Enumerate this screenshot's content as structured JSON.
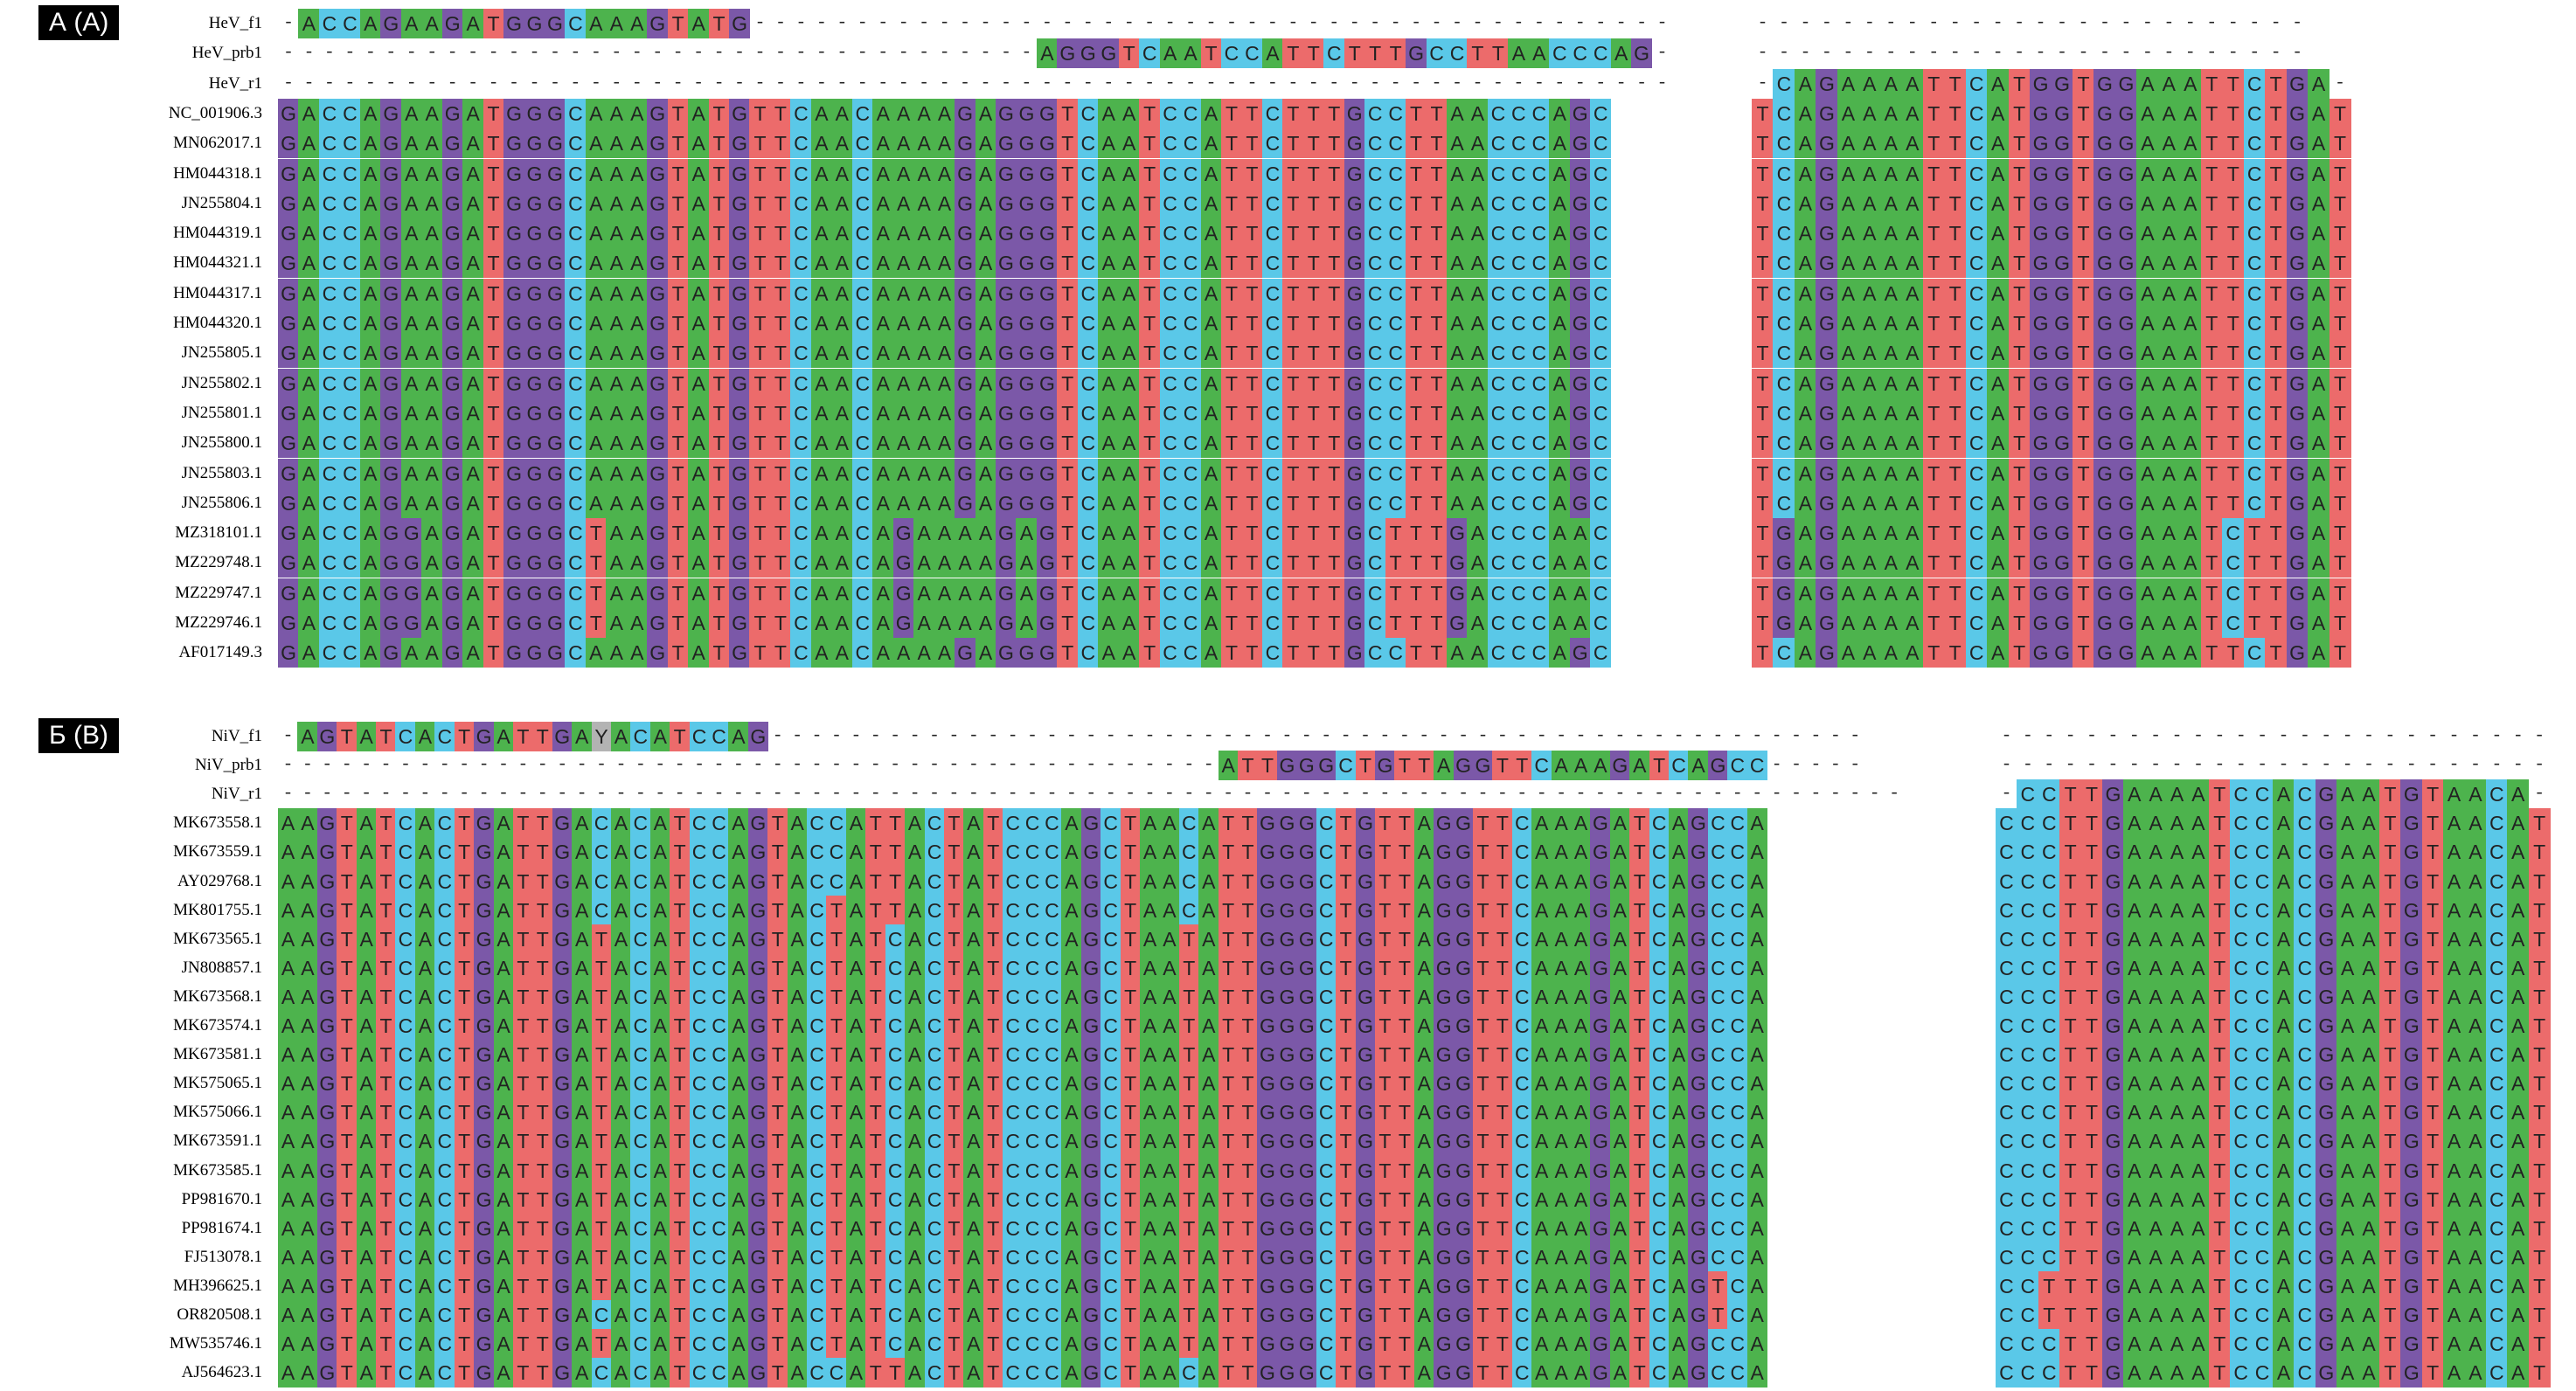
{
  "colors": {
    "A": "#4db34d",
    "C": "#5ac8e8",
    "G": "#7b58a8",
    "T": "#ec6b6b",
    "Y": "#b3b3b3",
    "gap": "#ffffff"
  },
  "panels": [
    {
      "tag": "А (A)",
      "blocks": [
        {
          "rows": [
            {
              "label": "HeV_f1",
              "seq": "-ACCAGAAGATGGGCAAAGTATG---------------------------------------------"
            },
            {
              "label": "HeV_prb1",
              "seq": "-------------------------------------AGGGTCAATCCATTCTTTGCCTTAACCCAG-"
            },
            {
              "label": "HeV_r1",
              "seq": "--------------------------------------------------------------------"
            },
            {
              "label": "NC_001906.3",
              "seq": "GACCAGAAGATGGGCAAAGTATGTTCAACAAAAGAGGGTCAATCCATTCTTTGCCTTAACCCAGC"
            },
            {
              "label": "MN062017.1",
              "seq": "GACCAGAAGATGGGCAAAGTATGTTCAACAAAAGAGGGTCAATCCATTCTTTGCCTTAACCCAGC"
            },
            {
              "label": "HM044318.1",
              "seq": "GACCAGAAGATGGGCAAAGTATGTTCAACAAAAGAGGGTCAATCCATTCTTTGCCTTAACCCAGC"
            },
            {
              "label": "JN255804.1",
              "seq": "GACCAGAAGATGGGCAAAGTATGTTCAACAAAAGAGGGTCAATCCATTCTTTGCCTTAACCCAGC"
            },
            {
              "label": "HM044319.1",
              "seq": "GACCAGAAGATGGGCAAAGTATGTTCAACAAAAGAGGGTCAATCCATTCTTTGCCTTAACCCAGC"
            },
            {
              "label": "HM044321.1",
              "seq": "GACCAGAAGATGGGCAAAGTATGTTCAACAAAAGAGGGTCAATCCATTCTTTGCCTTAACCCAGC"
            },
            {
              "label": "HM044317.1",
              "seq": "GACCAGAAGATGGGCAAAGTATGTTCAACAAAAGAGGGTCAATCCATTCTTTGCCTTAACCCAGC"
            },
            {
              "label": "HM044320.1",
              "seq": "GACCAGAAGATGGGCAAAGTATGTTCAACAAAAGAGGGTCAATCCATTCTTTGCCTTAACCCAGC"
            },
            {
              "label": "JN255805.1",
              "seq": "GACCAGAAGATGGGCAAAGTATGTTCAACAAAAGAGGGTCAATCCATTCTTTGCCTTAACCCAGC"
            },
            {
              "label": "JN255802.1",
              "seq": "GACCAGAAGATGGGCAAAGTATGTTCAACAAAAGAGGGTCAATCCATTCTTTGCCTTAACCCAGC"
            },
            {
              "label": "JN255801.1",
              "seq": "GACCAGAAGATGGGCAAAGTATGTTCAACAAAAGAGGGTCAATCCATTCTTTGCCTTAACCCAGC"
            },
            {
              "label": "JN255800.1",
              "seq": "GACCAGAAGATGGGCAAAGTATGTTCAACAAAAGAGGGTCAATCCATTCTTTGCCTTAACCCAGC"
            },
            {
              "label": "JN255803.1",
              "seq": "GACCAGAAGATGGGCAAAGTATGTTCAACAAAAGAGGGTCAATCCATTCTTTGCCTTAACCCAGC"
            },
            {
              "label": "JN255806.1",
              "seq": "GACCAGAAGATGGGCAAAGTATGTTCAACAAAAGAGGGTCAATCCATTCTTTGCCTTAACCCAGC"
            },
            {
              "label": "MZ318101.1",
              "seq": "GACCAGGAGATGGGCTAAGTATGTTCAACAGAAAAGAGTCAATCCATTCTTTGCTTTGACCCAAC"
            },
            {
              "label": "MZ229748.1",
              "seq": "GACCAGGAGATGGGCTAAGTATGTTCAACAGAAAAGAGTCAATCCATTCTTTGCTTTGACCCAAC"
            },
            {
              "label": "MZ229747.1",
              "seq": "GACCAGGAGATGGGCTAAGTATGTTCAACAGAAAAGAGTCAATCCATTCTTTGCTTTGACCCAAC"
            },
            {
              "label": "MZ229746.1",
              "seq": "GACCAGGAGATGGGCTAAGTATGTTCAACAGAAAAGAGTCAATCCATTCTTTGCTTTGACCCAAC"
            },
            {
              "label": "AF017149.3",
              "seq": "GACCAGAAGATGGGCAAAGTATGTTCAACAAAAGAGGGTCAATCCATTCTTTGCCTTAACCCAGC"
            }
          ]
        },
        {
          "rows": [
            {
              "label": "",
              "seq": "--------------------------"
            },
            {
              "label": "",
              "seq": "--------------------------"
            },
            {
              "label": "",
              "seq": "-CAGAAAATTCATGGTGGAAATTCTGA-"
            },
            {
              "label": "",
              "seq": "TCAGAAAATTCATGGTGGAAATTCTGAT"
            },
            {
              "label": "",
              "seq": "TCAGAAAATTCATGGTGGAAATTCTGAT"
            },
            {
              "label": "",
              "seq": "TCAGAAAATTCATGGTGGAAATTCTGAT"
            },
            {
              "label": "",
              "seq": "TCAGAAAATTCATGGTGGAAATTCTGAT"
            },
            {
              "label": "",
              "seq": "TCAGAAAATTCATGGTGGAAATTCTGAT"
            },
            {
              "label": "",
              "seq": "TCAGAAAATTCATGGTGGAAATTCTGAT"
            },
            {
              "label": "",
              "seq": "TCAGAAAATTCATGGTGGAAATTCTGAT"
            },
            {
              "label": "",
              "seq": "TCAGAAAATTCATGGTGGAAATTCTGAT"
            },
            {
              "label": "",
              "seq": "TCAGAAAATTCATGGTGGAAATTCTGAT"
            },
            {
              "label": "",
              "seq": "TCAGAAAATTCATGGTGGAAATTCTGAT"
            },
            {
              "label": "",
              "seq": "TCAGAAAATTCATGGTGGAAATTCTGAT"
            },
            {
              "label": "",
              "seq": "TCAGAAAATTCATGGTGGAAATTCTGAT"
            },
            {
              "label": "",
              "seq": "TCAGAAAATTCATGGTGGAAATTCTGAT"
            },
            {
              "label": "",
              "seq": "TCAGAAAATTCATGGTGGAAATTCTGAT"
            },
            {
              "label": "",
              "seq": "TGAGAAAATTCATGGTGGAAATCTTGAT"
            },
            {
              "label": "",
              "seq": "TGAGAAAATTCATGGTGGAAATCTTGAT"
            },
            {
              "label": "",
              "seq": "TGAGAAAATTCATGGTGGAAATCTTGAT"
            },
            {
              "label": "",
              "seq": "TGAGAAAATTCATGGTGGAAATCTTGAT"
            },
            {
              "label": "",
              "seq": "TCAGAAAATTCATGGTGGAAATTCTGAT"
            }
          ]
        }
      ]
    },
    {
      "tag": "Б (B)",
      "blocks": [
        {
          "rows": [
            {
              "label": "NiV_f1",
              "seq": "-AGTATCACTGATTGAYACATCCAG--------------------------------------------------------"
            },
            {
              "label": "NiV_prb1",
              "seq": "------------------------------------------------ATTGGGCTGTTAGGTTCAAAGATCAGCC-----"
            },
            {
              "label": "NiV_r1",
              "seq": "-----------------------------------------------------------------------------------"
            },
            {
              "label": "MK673558.1",
              "seq": "AAGTATCACTGATTGACACATCCAGTACCATTACTATCCCAGCTAACATTGGGCTGTTAGGTTCAAAGATCAGCCA"
            },
            {
              "label": "MK673559.1",
              "seq": "AAGTATCACTGATTGACACATCCAGTACCATTACTATCCCAGCTAACATTGGGCTGTTAGGTTCAAAGATCAGCCA"
            },
            {
              "label": "AY029768.1",
              "seq": "AAGTATCACTGATTGACACATCCAGTACCATTACTATCCCAGCTAACATTGGGCTGTTAGGTTCAAAGATCAGCCA"
            },
            {
              "label": "MK801755.1",
              "seq": "AAGTATCACTGATTGACACATCCAGTACTATTACTATCCCAGCTAACATTGGGCTGTTAGGTTCAAAGATCAGCCA"
            },
            {
              "label": "MK673565.1",
              "seq": "AAGTATCACTGATTGATACATCCAGTACTATCACTATCCCAGCTAATATTGGGCTGTTAGGTTCAAAGATCAGCCA"
            },
            {
              "label": "JN808857.1",
              "seq": "AAGTATCACTGATTGATACATCCAGTACTATCACTATCCCAGCTAATATTGGGCTGTTAGGTTCAAAGATCAGCCA"
            },
            {
              "label": "MK673568.1",
              "seq": "AAGTATCACTGATTGATACATCCAGTACTATCACTATCCCAGCTAATATTGGGCTGTTAGGTTCAAAGATCAGCCA"
            },
            {
              "label": "MK673574.1",
              "seq": "AAGTATCACTGATTGATACATCCAGTACTATCACTATCCCAGCTAATATTGGGCTGTTAGGTTCAAAGATCAGCCA"
            },
            {
              "label": "MK673581.1",
              "seq": "AAGTATCACTGATTGATACATCCAGTACTATCACTATCCCAGCTAATATTGGGCTGTTAGGTTCAAAGATCAGCCA"
            },
            {
              "label": "MK575065.1",
              "seq": "AAGTATCACTGATTGATACATCCAGTACTATCACTATCCCAGCTAATATTGGGCTGTTAGGTTCAAAGATCAGCCA"
            },
            {
              "label": "MK575066.1",
              "seq": "AAGTATCACTGATTGATACATCCAGTACTATCACTATCCCAGCTAATATTGGGCTGTTAGGTTCAAAGATCAGCCA"
            },
            {
              "label": "MK673591.1",
              "seq": "AAGTATCACTGATTGATACATCCAGTACTATCACTATCCCAGCTAATATTGGGCTGTTAGGTTCAAAGATCAGCCA"
            },
            {
              "label": "MK673585.1",
              "seq": "AAGTATCACTGATTGATACATCCAGTACTATCACTATCCCAGCTAATATTGGGCTGTTAGGTTCAAAGATCAGCCA"
            },
            {
              "label": "PP981670.1",
              "seq": "AAGTATCACTGATTGATACATCCAGTACTATCACTATCCCAGCTAATATTGGGCTGTTAGGTTCAAAGATCAGCCA"
            },
            {
              "label": "PP981674.1",
              "seq": "AAGTATCACTGATTGATACATCCAGTACTATCACTATCCCAGCTAATATTGGGCTGTTAGGTTCAAAGATCAGCCA"
            },
            {
              "label": "FJ513078.1",
              "seq": "AAGTATCACTGATTGATACATCCAGTACTATCACTATCCCAGCTAATATTGGGCTGTTAGGTTCAAAGATCAGCCA"
            },
            {
              "label": "MH396625.1",
              "seq": "AAGTATCACTGATTGATACATCCAGTACTATCACTATCCCAGCTAATATTGGGCTGTTAGGTTCAAAGATCAGTCA"
            },
            {
              "label": "OR820508.1",
              "seq": "AAGTATCACTGATTGACACATCCAGTACTATCACTATCCCAGCTAATATTGGGCTGTTAGGTTCAAAGATCAGTCA"
            },
            {
              "label": "MW535746.1",
              "seq": "AAGTATCACTGATTGATACATCCAGTACTATCACTATCCCAGCTAATATTGGGCTGTTAGGTTCAAAGATCAGCCA"
            },
            {
              "label": "AJ564623.1",
              "seq": "AAGTATCACTGATTGACACATCCAGTACCATTACTATCCCAGCTAACATTGGGCTGTTAGGTTCAAAGATCAGCCA"
            }
          ]
        },
        {
          "rows": [
            {
              "label": "",
              "seq": "--------------------------"
            },
            {
              "label": "",
              "seq": "--------------------------"
            },
            {
              "label": "",
              "seq": "-CCTTGAAAATCCACGAATGTAACA-"
            },
            {
              "label": "",
              "seq": "CCCTTGAAAATCCACGAATGTAACAT"
            },
            {
              "label": "",
              "seq": "CCCTTGAAAATCCACGAATGTAACAT"
            },
            {
              "label": "",
              "seq": "CCCTTGAAAATCCACGAATGTAACAT"
            },
            {
              "label": "",
              "seq": "CCCTTGAAAATCCACGAATGTAACAT"
            },
            {
              "label": "",
              "seq": "CCCTTGAAAATCCACGAATGTAACAT"
            },
            {
              "label": "",
              "seq": "CCCTTGAAAATCCACGAATGTAACAT"
            },
            {
              "label": "",
              "seq": "CCCTTGAAAATCCACGAATGTAACAT"
            },
            {
              "label": "",
              "seq": "CCCTTGAAAATCCACGAATGTAACAT"
            },
            {
              "label": "",
              "seq": "CCCTTGAAAATCCACGAATGTAACAT"
            },
            {
              "label": "",
              "seq": "CCCTTGAAAATCCACGAATGTAACAT"
            },
            {
              "label": "",
              "seq": "CCCTTGAAAATCCACGAATGTAACAT"
            },
            {
              "label": "",
              "seq": "CCCTTGAAAATCCACGAATGTAACAT"
            },
            {
              "label": "",
              "seq": "CCCTTGAAAATCCACGAATGTAACAT"
            },
            {
              "label": "",
              "seq": "CCCTTGAAAATCCACGAATGTAACAT"
            },
            {
              "label": "",
              "seq": "CCCTTGAAAATCCACGAATGTAACAT"
            },
            {
              "label": "",
              "seq": "CCCTTGAAAATCCACGAATGTAACAT"
            },
            {
              "label": "",
              "seq": "CCTTTGAAAATCCACGAATGTAACAT"
            },
            {
              "label": "",
              "seq": "CCTTTGAAAATCCACGAATGTAACAT"
            },
            {
              "label": "",
              "seq": "CCCTTGAAAATCCACGAATGTAACAT"
            },
            {
              "label": "",
              "seq": "CCCTTGAAAATCCACGAATGTAACAT"
            }
          ]
        }
      ]
    }
  ]
}
